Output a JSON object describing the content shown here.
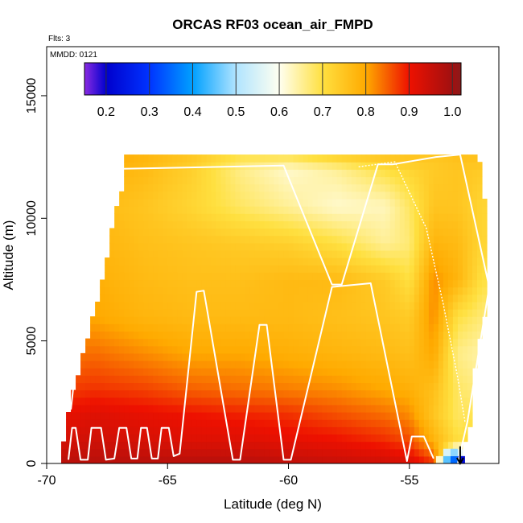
{
  "chart_data": {
    "type": "heatmap",
    "title": "ORCAS RF03 ocean_air_FMPD",
    "annotations": {
      "flights": "Flts: 3",
      "date": "MMDD: 0121"
    },
    "xlabel": "Latitude (deg N)",
    "ylabel": "Altitude (m)",
    "xlim": [
      -70,
      -51.3
    ],
    "ylim": [
      0,
      17000
    ],
    "x_ticks": [
      -70,
      -65,
      -60,
      -55
    ],
    "x_tick_labels": [
      "-70",
      "-65",
      "-60",
      "-55"
    ],
    "y_ticks": [
      0,
      5000,
      10000,
      15000
    ],
    "y_tick_labels": [
      "0",
      "5000",
      "10000",
      "15000"
    ],
    "colorbar": {
      "range": [
        0.15,
        1.02
      ],
      "ticks": [
        0.2,
        0.3,
        0.4,
        0.5,
        0.6,
        0.7,
        0.8,
        0.9,
        1.0
      ],
      "tick_labels": [
        "0.2",
        "0.3",
        "0.4",
        "0.5",
        "0.6",
        "0.7",
        "0.8",
        "0.9",
        "1.0"
      ],
      "stops": [
        [
          0.15,
          "#8a2be2"
        ],
        [
          0.2,
          "#0000cd"
        ],
        [
          0.3,
          "#0033ff"
        ],
        [
          0.4,
          "#00a0ff"
        ],
        [
          0.5,
          "#b0e4ff"
        ],
        [
          0.6,
          "#fffff0"
        ],
        [
          0.7,
          "#ffe040"
        ],
        [
          0.8,
          "#ffaa00"
        ],
        [
          0.9,
          "#ee1100"
        ],
        [
          1.0,
          "#a01010"
        ],
        [
          1.02,
          "#8b1a1a"
        ]
      ]
    },
    "field_grid": {
      "lats": [
        -69.5,
        -68,
        -66,
        -64,
        -62,
        -60,
        -58,
        -56,
        -55,
        -54,
        -53,
        -52
      ],
      "alts": [
        0,
        1000,
        2000,
        3000,
        4500,
        6000,
        7500,
        9000,
        10500,
        12000,
        12600
      ],
      "values": [
        [
          0.97,
          0.97,
          0.97,
          0.97,
          0.97,
          0.96,
          0.95,
          0.94,
          0.93,
          0.88,
          0.42,
          0.78
        ],
        [
          0.93,
          0.94,
          0.93,
          0.92,
          0.92,
          0.91,
          0.9,
          0.88,
          0.86,
          0.78,
          0.7,
          0.72
        ],
        [
          0.91,
          0.92,
          0.91,
          0.9,
          0.89,
          0.88,
          0.86,
          0.84,
          0.82,
          0.75,
          0.68,
          0.7
        ],
        [
          0.87,
          0.88,
          0.87,
          0.85,
          0.84,
          0.83,
          0.82,
          0.8,
          0.79,
          0.76,
          0.68,
          0.66
        ],
        [
          0.83,
          0.84,
          0.82,
          0.8,
          0.8,
          0.79,
          0.78,
          0.77,
          0.76,
          0.8,
          0.66,
          0.64
        ],
        [
          0.8,
          0.8,
          0.78,
          0.77,
          0.77,
          0.77,
          0.76,
          0.75,
          0.74,
          0.82,
          0.7,
          0.67
        ],
        [
          0.79,
          0.79,
          0.77,
          0.76,
          0.76,
          0.77,
          0.77,
          0.74,
          0.7,
          0.82,
          0.78,
          0.7
        ],
        [
          0.78,
          0.78,
          0.76,
          0.75,
          0.74,
          0.73,
          0.7,
          0.65,
          0.67,
          0.78,
          0.77,
          0.72
        ],
        [
          0.78,
          0.77,
          0.75,
          0.72,
          0.68,
          0.65,
          0.62,
          0.63,
          0.68,
          0.75,
          0.75,
          0.72
        ],
        [
          0.8,
          0.79,
          0.77,
          0.73,
          0.66,
          0.62,
          0.65,
          0.7,
          0.72,
          0.74,
          0.75,
          0.74
        ],
        [
          0.81,
          0.8,
          0.78,
          0.75,
          0.7,
          0.7,
          0.74,
          0.76,
          0.76,
          0.75,
          0.76,
          0.76
        ]
      ],
      "coverage": [
        [
          0,
          0
        ],
        [
          1500,
          -69.2
        ],
        [
          2500,
          -69.0
        ],
        [
          4000,
          -68.6
        ],
        [
          5500,
          -68.2
        ],
        [
          7000,
          -67.8
        ],
        [
          8500,
          -67.5
        ],
        [
          10000,
          -67.2
        ],
        [
          11500,
          -66.8
        ],
        [
          12300,
          -66.7
        ]
      ],
      "coverage_right": [
        [
          0,
          -53.0
        ],
        [
          1500,
          -52.6
        ],
        [
          4000,
          -52.4
        ],
        [
          7000,
          -51.8
        ],
        [
          10000,
          -51.9
        ],
        [
          12400,
          -52.2
        ]
      ]
    },
    "flight_tracks": [
      {
        "points": [
          [
            -69.1,
            150
          ],
          [
            -68.95,
            1450
          ],
          [
            -68.8,
            1450
          ],
          [
            -68.6,
            150
          ],
          [
            -68.3,
            150
          ],
          [
            -68.15,
            1450
          ],
          [
            -67.75,
            1450
          ],
          [
            -67.55,
            150
          ],
          [
            -67.2,
            200
          ],
          [
            -67.0,
            1450
          ],
          [
            -66.7,
            1450
          ],
          [
            -66.5,
            200
          ],
          [
            -66.25,
            200
          ],
          [
            -66.1,
            1450
          ],
          [
            -65.85,
            1450
          ],
          [
            -65.65,
            200
          ],
          [
            -65.4,
            200
          ],
          [
            -65.25,
            1450
          ],
          [
            -64.95,
            1450
          ],
          [
            -64.75,
            300
          ],
          [
            -64.5,
            400
          ],
          [
            -63.8,
            7000
          ],
          [
            -63.5,
            7050
          ],
          [
            -62.3,
            150
          ],
          [
            -62.0,
            150
          ],
          [
            -61.2,
            5650
          ],
          [
            -60.9,
            5650
          ],
          [
            -60.2,
            150
          ],
          [
            -59.9,
            150
          ],
          [
            -58.2,
            7200
          ],
          [
            -56.6,
            7350
          ],
          [
            -55.1,
            100
          ],
          [
            -54.9,
            1100
          ],
          [
            -54.4,
            1100
          ],
          [
            -54.0,
            200
          ]
        ],
        "dashed": false
      },
      {
        "points": [
          [
            -69.0,
            2200
          ],
          [
            -67.9,
            12000
          ],
          [
            -60.2,
            12150
          ],
          [
            -58.2,
            7300
          ],
          [
            -57.8,
            7300
          ],
          [
            -56.3,
            12200
          ],
          [
            -55.7,
            12200
          ],
          [
            -53.9,
            12500
          ],
          [
            -52.9,
            12600
          ],
          [
            -51.7,
            7200
          ],
          [
            -52.6,
            1700
          ],
          [
            -53.0,
            0
          ]
        ],
        "dashed": false
      },
      {
        "points": [
          [
            -67.9,
            12000
          ],
          [
            -69.0,
            2200
          ]
        ],
        "dashed": true
      },
      {
        "points": [
          [
            -57.1,
            12100
          ],
          [
            -55.6,
            12300
          ],
          [
            -54.3,
            9600
          ],
          [
            -53.6,
            6500
          ],
          [
            -53.0,
            3500
          ],
          [
            -52.7,
            1700
          ]
        ],
        "dashed": true
      }
    ],
    "arrow": {
      "lat": -52.9,
      "alt_top": 700,
      "alt_bottom": 0
    }
  }
}
